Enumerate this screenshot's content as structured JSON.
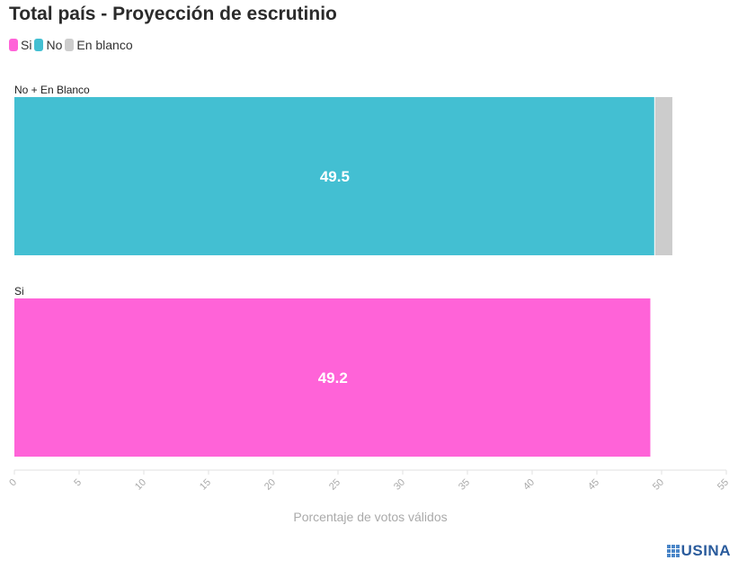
{
  "colors": {
    "si": "#ff63d8",
    "no": "#43bfd2",
    "blanco": "#cccccc",
    "axis": "#e2e2e2",
    "tick_text": "#aaaaaa",
    "brand": "#2a5b9c"
  },
  "legend": [
    {
      "label": "Si",
      "color": "#ff63d8"
    },
    {
      "label": "No",
      "color": "#43bfd2"
    },
    {
      "label": "En blanco",
      "color": "#cccccc"
    }
  ],
  "brand": "USINA",
  "chart_data": {
    "type": "bar",
    "orientation": "horizontal",
    "stacked": true,
    "title": "Total país - Proyección de escrutinio",
    "xlabel": "Porcentaje de votos válidos",
    "ylabel": "",
    "xlim": [
      0,
      55
    ],
    "x_ticks": [
      "0",
      "5",
      "10",
      "15",
      "20",
      "25",
      "30",
      "35",
      "40",
      "45",
      "50",
      "55"
    ],
    "grid": false,
    "legend_position": "top-left",
    "categories": [
      "No + En Blanco",
      "Si"
    ],
    "series": [
      {
        "name": "Si",
        "color": "#ff63d8",
        "values": [
          0,
          49.2
        ]
      },
      {
        "name": "No",
        "color": "#43bfd2",
        "values": [
          49.5,
          0
        ]
      },
      {
        "name": "En blanco",
        "color": "#cccccc",
        "values": [
          1.4,
          0
        ]
      }
    ],
    "data_labels": [
      {
        "category": "No + En Blanco",
        "series": "No",
        "text": "49.5"
      },
      {
        "category": "Si",
        "series": "Si",
        "text": "49.2"
      }
    ]
  }
}
